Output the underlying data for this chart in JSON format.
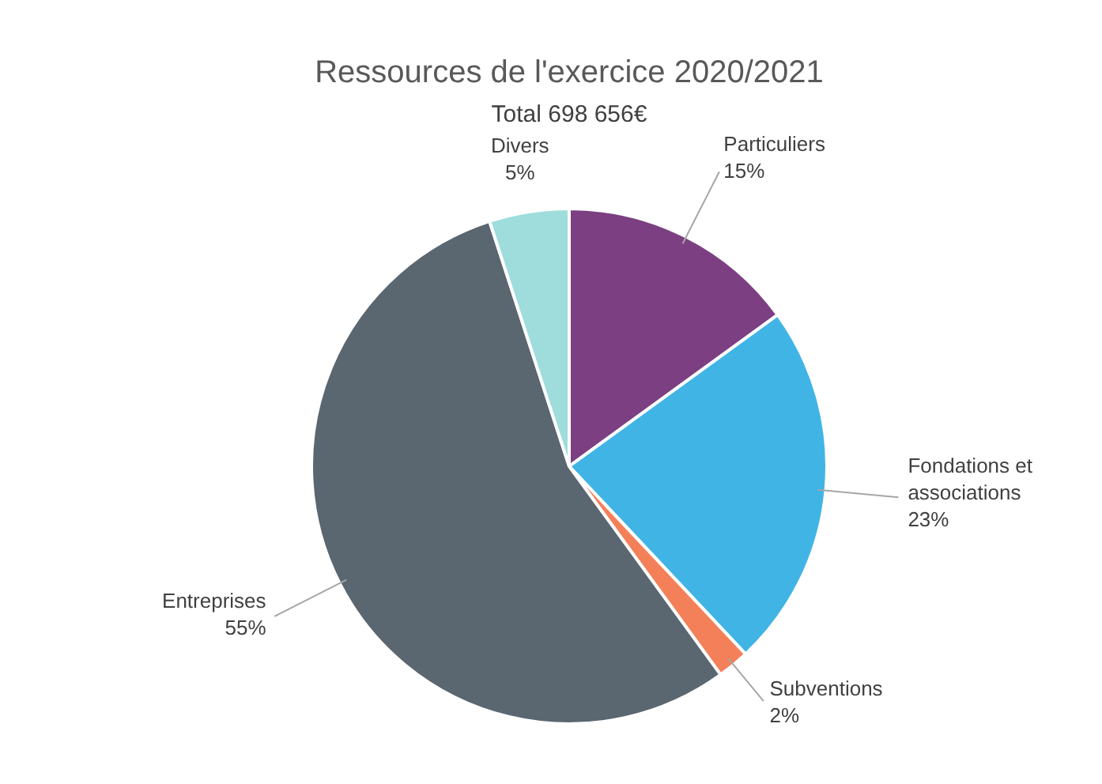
{
  "chart_data": {
    "type": "pie",
    "title": "Ressources de l'exercice 2020/2021",
    "subtitle": "Total 698 656€",
    "categories": [
      "Particuliers",
      "Fondations et associations",
      "Subventions",
      "Entreprises",
      "Divers"
    ],
    "values": [
      15,
      23,
      2,
      55,
      5
    ],
    "colors": [
      "#7b3f82",
      "#41b4e6",
      "#f4805a",
      "#5a6670",
      "#9fdcdc"
    ],
    "value_labels": [
      "15%",
      "23%",
      "2%",
      "55%",
      "5%"
    ]
  }
}
